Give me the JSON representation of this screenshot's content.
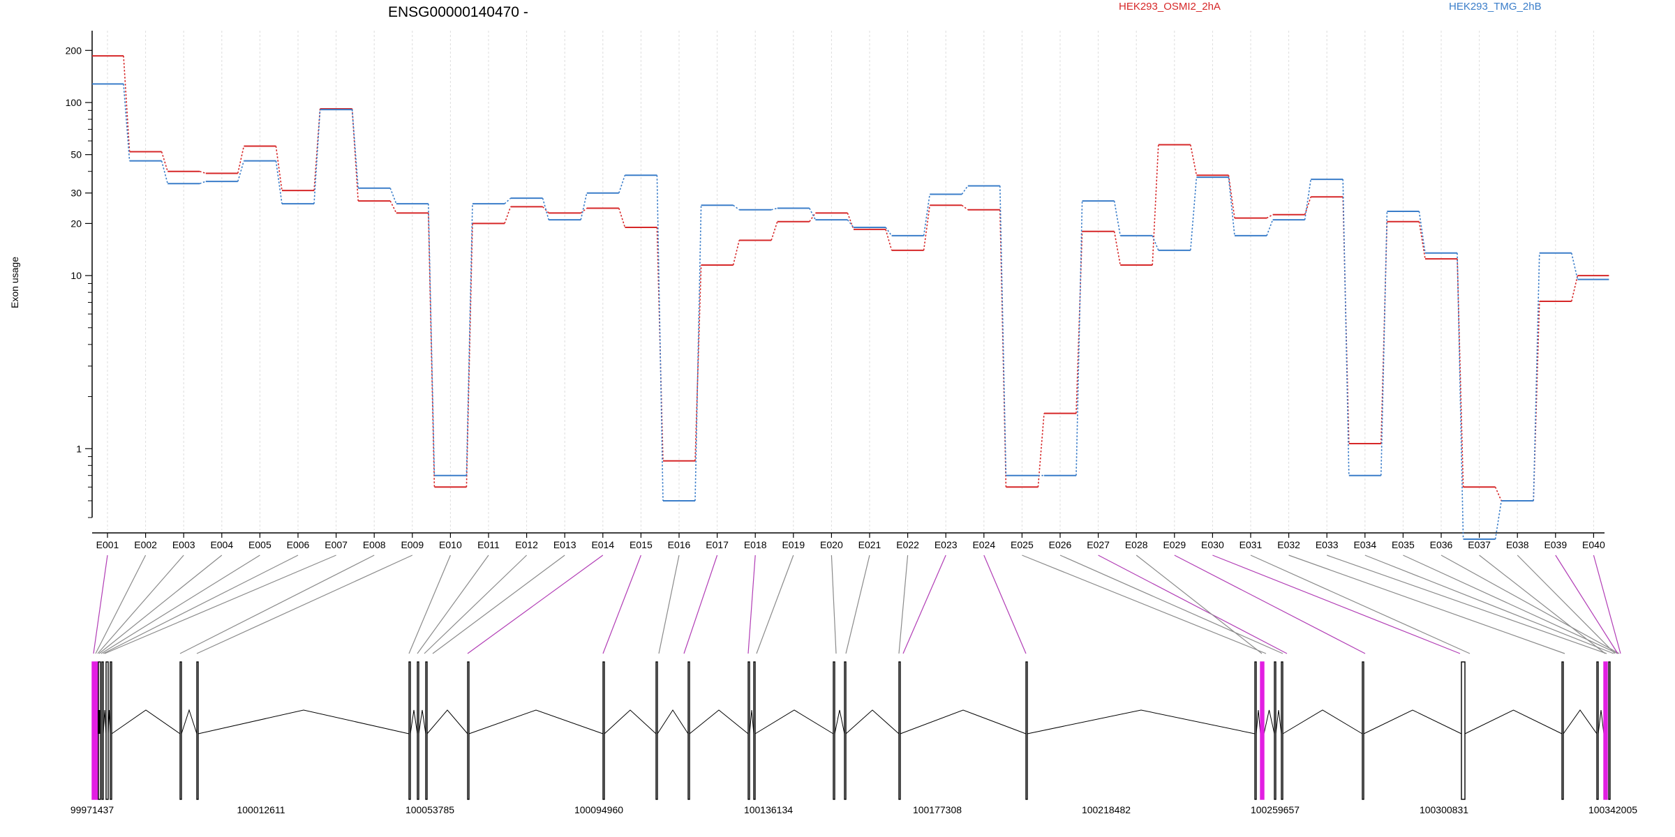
{
  "chart_data": {
    "type": "line",
    "title": "ENSG00000140470 -",
    "ylabel": "Exon usage",
    "yscale": "log",
    "ylim": [
      0.4,
      260
    ],
    "yticks": [
      1,
      10,
      20,
      30,
      50,
      100,
      200
    ],
    "grid": "vertical",
    "legend_placement": "top",
    "categories": [
      "E001",
      "E002",
      "E003",
      "E004",
      "E005",
      "E006",
      "E007",
      "E008",
      "E009",
      "E010",
      "E011",
      "E012",
      "E013",
      "E014",
      "E015",
      "E016",
      "E017",
      "E018",
      "E019",
      "E020",
      "E021",
      "E022",
      "E023",
      "E024",
      "E025",
      "E026",
      "E027",
      "E028",
      "E029",
      "E030",
      "E031",
      "E032",
      "E033",
      "E034",
      "E035",
      "E036",
      "E037",
      "E038",
      "E039",
      "E040"
    ],
    "series": [
      {
        "name": "HEK293_OSMI2_2hA",
        "color": "#d62728",
        "values": [
          186,
          52,
          40,
          39,
          56,
          31,
          92,
          27,
          23,
          0.6,
          20,
          25,
          23,
          24.5,
          19,
          0.85,
          11.5,
          16,
          20.5,
          23,
          18.5,
          14,
          25.5,
          24,
          0.6,
          1.6,
          18,
          11.5,
          57,
          38,
          21.5,
          22.5,
          28.5,
          1.07,
          20.5,
          12.5,
          0.6,
          0.5,
          7.1,
          10
        ]
      },
      {
        "name": "HEK293_TMG_2hB",
        "color": "#3a7dc9",
        "values": [
          128,
          46,
          34,
          35,
          46,
          26,
          91,
          32,
          26,
          0.7,
          26,
          28,
          21,
          30,
          38,
          0.5,
          25.5,
          24,
          24.5,
          21,
          19,
          17,
          29.5,
          33,
          0.7,
          0.7,
          27,
          17,
          14,
          37,
          17,
          21,
          36,
          0.7,
          23.5,
          13.5,
          0.3,
          0.5,
          13.5,
          9.5
        ]
      }
    ],
    "gene_model": {
      "coordinates": [
        "99971437",
        "100012611",
        "100053785",
        "100094960",
        "100136134",
        "100177308",
        "100218482",
        "100259657",
        "100300831",
        "100342005"
      ],
      "exon_highlight_color": "#e21ee2",
      "exon_color": "#000000",
      "highlighted_exons": [
        "E001",
        "E014",
        "E015",
        "E017",
        "E018",
        "E023",
        "E024",
        "E027",
        "E029",
        "E030",
        "E039",
        "E040"
      ]
    }
  }
}
